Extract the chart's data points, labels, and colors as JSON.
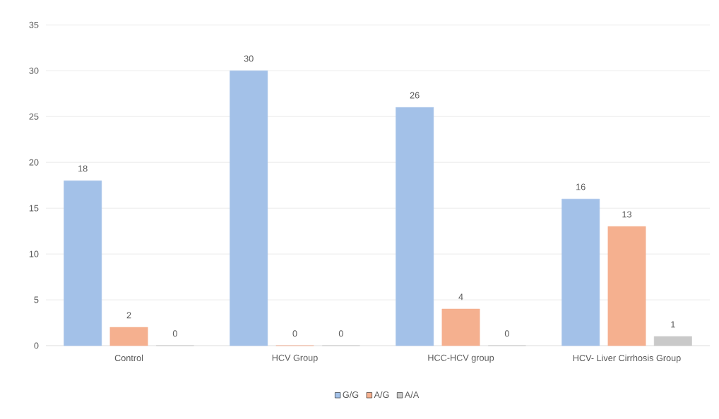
{
  "chart_data": {
    "type": "bar",
    "categories": [
      "Control",
      "HCV Group",
      "HCC-HCV group",
      "HCV- Liver Cirrhosis Group"
    ],
    "series": [
      {
        "name": "G/G",
        "color": "#a3c1e8",
        "values": [
          18,
          30,
          26,
          16
        ]
      },
      {
        "name": "A/G",
        "color": "#f5b08f",
        "values": [
          2,
          0,
          4,
          13
        ]
      },
      {
        "name": "A/A",
        "color": "#c9c9c9",
        "values": [
          0,
          0,
          0,
          1
        ]
      }
    ],
    "ylim": [
      0,
      35
    ],
    "yticks": [
      0,
      5,
      10,
      15,
      20,
      25,
      30,
      35
    ],
    "grid": "y",
    "legend": "bottom",
    "data_labels": true
  }
}
